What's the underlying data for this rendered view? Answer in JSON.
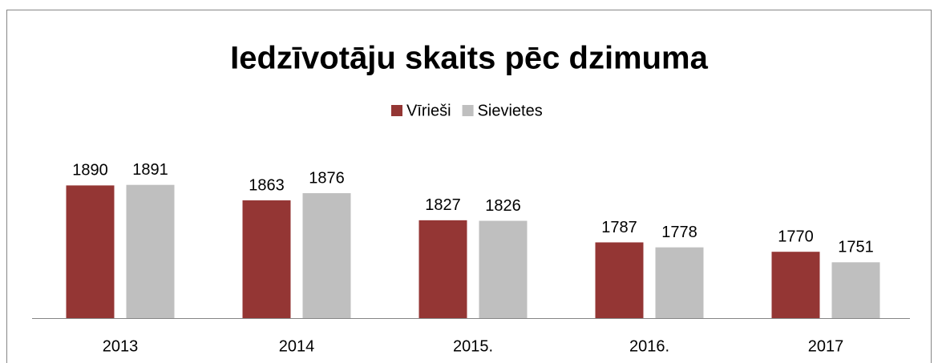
{
  "chart_data": {
    "type": "bar",
    "title": "Iedzīvotāju skaits pēc dzimuma",
    "categories": [
      "2013",
      "2014",
      "2015.",
      "2016.",
      "2017"
    ],
    "series": [
      {
        "name": "Vīrieši",
        "color": "#943634",
        "values": [
          1890,
          1863,
          1827,
          1787,
          1770
        ]
      },
      {
        "name": "Sievietes",
        "color": "#bfbfbf",
        "values": [
          1891,
          1876,
          1826,
          1778,
          1751
        ]
      }
    ],
    "ylim": [
      1650,
      1950
    ],
    "legend": "top"
  }
}
